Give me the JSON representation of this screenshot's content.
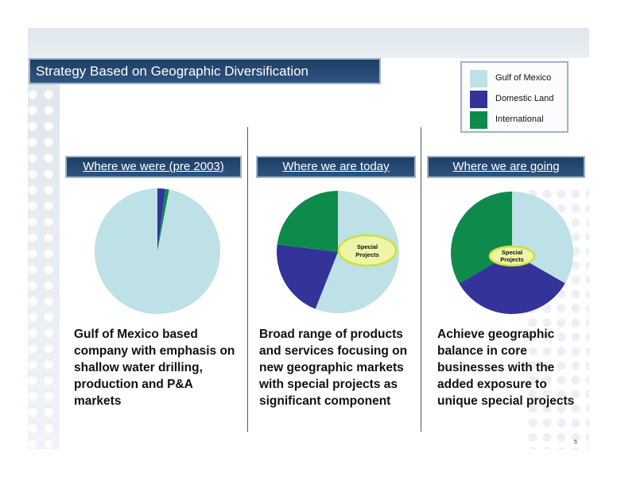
{
  "title": "Strategy Based on Geographic Diversification",
  "legend": [
    {
      "label": "Gulf of Mexico",
      "color": "#bde1e6"
    },
    {
      "label": "Domestic Land",
      "color": "#33339a"
    },
    {
      "label": "International",
      "color": "#0e8a4a"
    }
  ],
  "columns": [
    {
      "header": "Where we were (pre 2003)",
      "description": [
        "Gulf of Mexico based",
        "company with emphasis on",
        "shallow water drilling,",
        "production and P&A",
        "markets"
      ]
    },
    {
      "header": "Where we are today",
      "description": [
        "Broad range of products",
        "and services focusing on",
        "new geographic markets",
        "with special projects as",
        "significant component"
      ]
    },
    {
      "header": "Where we are going",
      "description": [
        "Achieve geographic",
        "balance in core",
        "businesses with the",
        "added exposure to",
        "unique special projects"
      ]
    }
  ],
  "chart_data": [
    {
      "type": "pie",
      "categories": [
        "Gulf of Mexico",
        "Domestic Land",
        "International"
      ],
      "values": [
        97,
        2,
        1
      ],
      "colors": [
        "#bde1e6",
        "#33339a",
        "#0e8a4a"
      ],
      "annotation": ""
    },
    {
      "type": "pie",
      "categories": [
        "Gulf of Mexico",
        "Domestic Land",
        "International"
      ],
      "values": [
        56,
        21,
        23
      ],
      "colors": [
        "#bde1e6",
        "#33339a",
        "#0e8a4a"
      ],
      "annotation": "Special Projects"
    },
    {
      "type": "pie",
      "categories": [
        "Gulf of Mexico",
        "Domestic Land",
        "International"
      ],
      "values": [
        33.3,
        33.3,
        33.4
      ],
      "colors": [
        "#bde1e6",
        "#33339a",
        "#0e8a4a"
      ],
      "annotation": "Special Projects"
    }
  ],
  "page_number": "5"
}
